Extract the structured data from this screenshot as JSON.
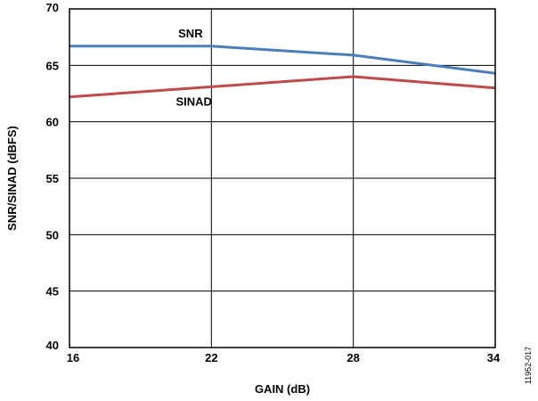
{
  "chart_data": {
    "type": "line",
    "title": "",
    "xlabel": "GAIN (dB)",
    "ylabel": "SNR/SINAD (dBFS)",
    "xlim": [
      16,
      34
    ],
    "ylim": [
      40,
      70
    ],
    "xticks": [
      16,
      22,
      28,
      34
    ],
    "yticks": [
      40,
      45,
      50,
      55,
      60,
      65,
      70
    ],
    "grid": true,
    "x": [
      16,
      22,
      28,
      34
    ],
    "series": [
      {
        "name": "SNR",
        "values": [
          66.7,
          66.7,
          65.9,
          64.3
        ],
        "color": "#4a7ebb"
      },
      {
        "name": "SINAD",
        "values": [
          62.2,
          63.1,
          64.0,
          63.0
        ],
        "color": "#be4b48"
      }
    ]
  },
  "figure_id": "11952-017"
}
